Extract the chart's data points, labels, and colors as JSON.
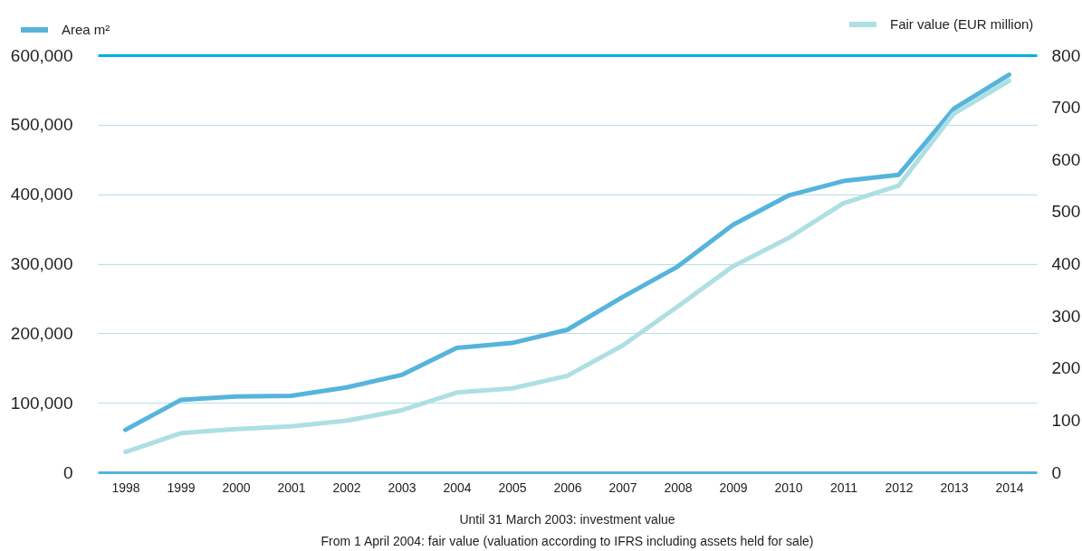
{
  "chart_data": {
    "type": "line",
    "categories": [
      "1998",
      "1999",
      "2000",
      "2001",
      "2002",
      "2003",
      "2004",
      "2005",
      "2006",
      "2007",
      "2008",
      "2009",
      "2010",
      "2011",
      "2012",
      "2013",
      "2014"
    ],
    "series": [
      {
        "name": "Area m²",
        "color": "#56b4dc",
        "values": [
          61000,
          104000,
          109000,
          110000,
          122000,
          140000,
          179000,
          186000,
          205000,
          252000,
          296000,
          356000,
          398000,
          419000,
          428000,
          523000,
          572000
        ]
      },
      {
        "name": "Fair value (EUR million)",
        "color": "#addfe3",
        "axis": "y2",
        "values": [
          39,
          75,
          83,
          88,
          99,
          119,
          153,
          161,
          185,
          243,
          318,
          395,
          449,
          516,
          550,
          688,
          751
        ]
      }
    ],
    "ylim": [
      0,
      600000
    ],
    "yticks": [
      0,
      {
        "value": 100000,
        "label": "100,000"
      },
      {
        "value": 200000,
        "label": "200,000"
      },
      {
        "value": 300000,
        "label": "300,000"
      },
      {
        "value": 400000,
        "label": "400,000"
      },
      {
        "value": 500000,
        "label": "500,000"
      },
      {
        "value": 600000,
        "label": "600,000"
      }
    ],
    "y2lim": [
      0,
      800
    ],
    "y2ticks": [
      0,
      100,
      200,
      300,
      400,
      500,
      600,
      700,
      800
    ],
    "grid": "y",
    "legend": "top",
    "annotations": [
      "Until 31 March 2003: investment value",
      "From 1 April 2004: fair value (valuation according to IFRS including assets held for sale)"
    ]
  }
}
